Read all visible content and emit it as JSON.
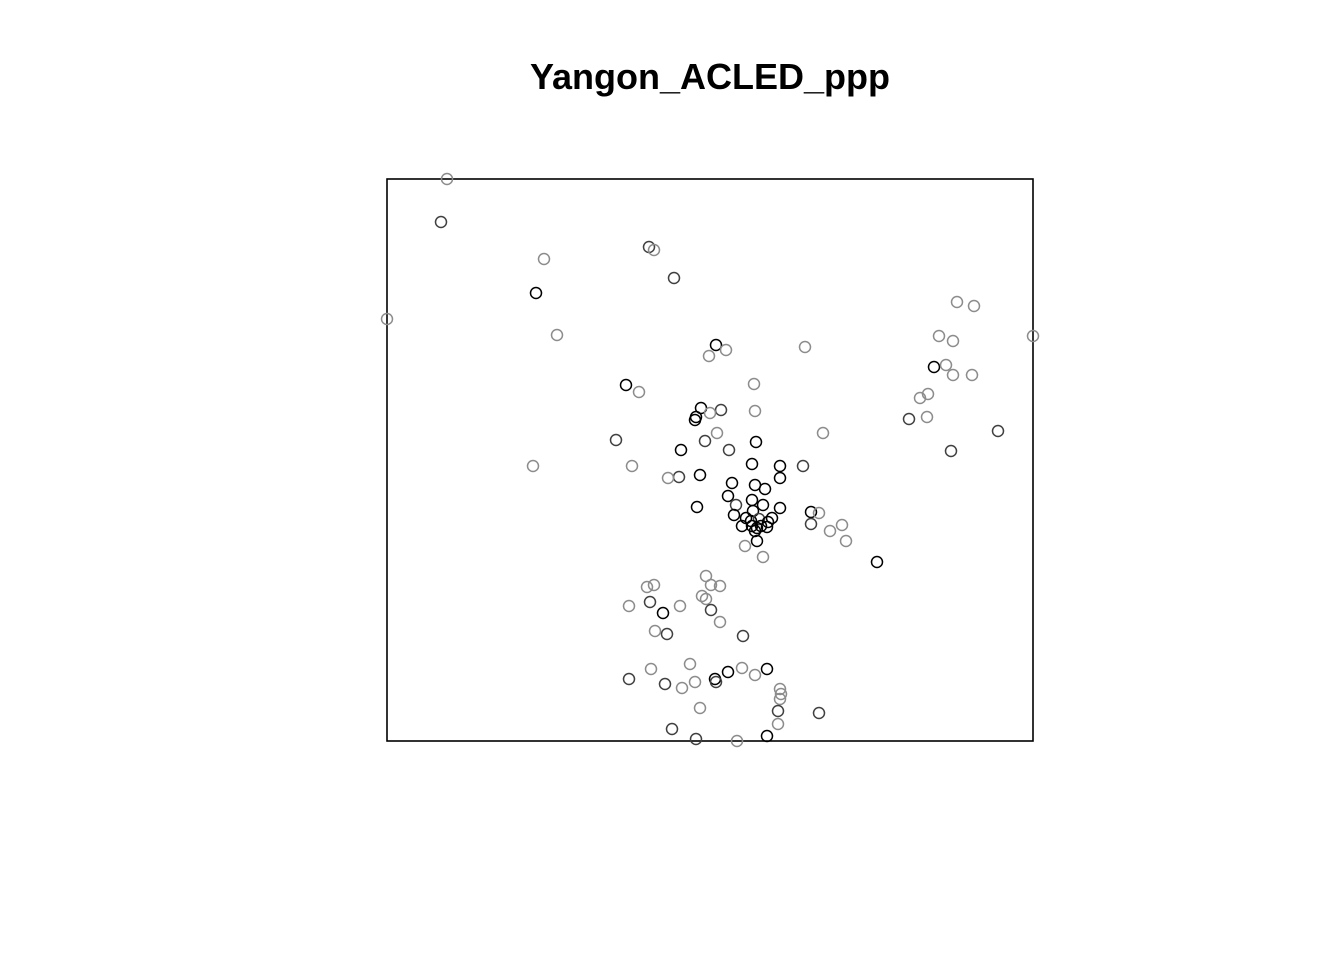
{
  "chart_data": {
    "type": "scatter",
    "title": "Yangon_ACLED_ppp",
    "xlabel": "",
    "ylabel": "",
    "xlim": [
      0,
      646
    ],
    "ylim": [
      0,
      562
    ],
    "axes": false,
    "grid": false,
    "window_frame": true,
    "marker": "open-circle",
    "colors": {
      "dark": "#000000",
      "medium": "#404040",
      "light": "#8c8c8c"
    },
    "points": [
      {
        "x": 60,
        "y": 562,
        "shade": "light"
      },
      {
        "x": 54,
        "y": 519,
        "shade": "medium"
      },
      {
        "x": 157,
        "y": 482,
        "shade": "light"
      },
      {
        "x": 262,
        "y": 494,
        "shade": "medium"
      },
      {
        "x": 267,
        "y": 491,
        "shade": "light"
      },
      {
        "x": 287,
        "y": 463,
        "shade": "medium"
      },
      {
        "x": 149,
        "y": 448,
        "shade": "dark"
      },
      {
        "x": 0,
        "y": 422,
        "shade": "light"
      },
      {
        "x": 170,
        "y": 406,
        "shade": "light"
      },
      {
        "x": 329,
        "y": 396,
        "shade": "dark"
      },
      {
        "x": 322,
        "y": 385,
        "shade": "light"
      },
      {
        "x": 339,
        "y": 391,
        "shade": "light"
      },
      {
        "x": 418,
        "y": 394,
        "shade": "light"
      },
      {
        "x": 239,
        "y": 356,
        "shade": "dark"
      },
      {
        "x": 252,
        "y": 349,
        "shade": "light"
      },
      {
        "x": 367,
        "y": 357,
        "shade": "light"
      },
      {
        "x": 368,
        "y": 330,
        "shade": "light"
      },
      {
        "x": 314,
        "y": 333,
        "shade": "dark"
      },
      {
        "x": 309,
        "y": 324,
        "shade": "dark"
      },
      {
        "x": 308,
        "y": 321,
        "shade": "dark"
      },
      {
        "x": 334,
        "y": 331,
        "shade": "medium"
      },
      {
        "x": 323,
        "y": 328,
        "shade": "light"
      },
      {
        "x": 330,
        "y": 308,
        "shade": "light"
      },
      {
        "x": 318,
        "y": 300,
        "shade": "medium"
      },
      {
        "x": 342,
        "y": 291,
        "shade": "medium"
      },
      {
        "x": 369,
        "y": 299,
        "shade": "dark"
      },
      {
        "x": 294,
        "y": 291,
        "shade": "dark"
      },
      {
        "x": 436,
        "y": 308,
        "shade": "light"
      },
      {
        "x": 229,
        "y": 301,
        "shade": "medium"
      },
      {
        "x": 245,
        "y": 275,
        "shade": "light"
      },
      {
        "x": 146,
        "y": 275,
        "shade": "light"
      },
      {
        "x": 292,
        "y": 264,
        "shade": "medium"
      },
      {
        "x": 281,
        "y": 263,
        "shade": "light"
      },
      {
        "x": 313,
        "y": 266,
        "shade": "dark"
      },
      {
        "x": 365,
        "y": 277,
        "shade": "dark"
      },
      {
        "x": 393,
        "y": 275,
        "shade": "dark"
      },
      {
        "x": 416,
        "y": 275,
        "shade": "medium"
      },
      {
        "x": 345,
        "y": 258,
        "shade": "dark"
      },
      {
        "x": 368,
        "y": 256,
        "shade": "dark"
      },
      {
        "x": 378,
        "y": 252,
        "shade": "dark"
      },
      {
        "x": 393,
        "y": 263,
        "shade": "dark"
      },
      {
        "x": 341,
        "y": 245,
        "shade": "dark"
      },
      {
        "x": 365,
        "y": 241,
        "shade": "dark"
      },
      {
        "x": 376,
        "y": 236,
        "shade": "dark"
      },
      {
        "x": 349,
        "y": 236,
        "shade": "medium"
      },
      {
        "x": 366,
        "y": 230,
        "shade": "dark"
      },
      {
        "x": 393,
        "y": 233,
        "shade": "dark"
      },
      {
        "x": 310,
        "y": 234,
        "shade": "dark"
      },
      {
        "x": 347,
        "y": 226,
        "shade": "dark"
      },
      {
        "x": 359,
        "y": 223,
        "shade": "dark"
      },
      {
        "x": 364,
        "y": 220,
        "shade": "dark"
      },
      {
        "x": 372,
        "y": 222,
        "shade": "medium"
      },
      {
        "x": 381,
        "y": 219,
        "shade": "dark"
      },
      {
        "x": 385,
        "y": 223,
        "shade": "dark"
      },
      {
        "x": 355,
        "y": 215,
        "shade": "dark"
      },
      {
        "x": 365,
        "y": 215,
        "shade": "dark"
      },
      {
        "x": 370,
        "y": 213,
        "shade": "dark"
      },
      {
        "x": 374,
        "y": 215,
        "shade": "dark"
      },
      {
        "x": 380,
        "y": 214,
        "shade": "dark"
      },
      {
        "x": 368,
        "y": 210,
        "shade": "dark"
      },
      {
        "x": 370,
        "y": 200,
        "shade": "dark"
      },
      {
        "x": 358,
        "y": 195,
        "shade": "light"
      },
      {
        "x": 376,
        "y": 184,
        "shade": "light"
      },
      {
        "x": 424,
        "y": 229,
        "shade": "dark"
      },
      {
        "x": 424,
        "y": 217,
        "shade": "medium"
      },
      {
        "x": 432,
        "y": 228,
        "shade": "light"
      },
      {
        "x": 443,
        "y": 210,
        "shade": "light"
      },
      {
        "x": 455,
        "y": 216,
        "shade": "light"
      },
      {
        "x": 459,
        "y": 200,
        "shade": "light"
      },
      {
        "x": 490,
        "y": 179,
        "shade": "dark"
      },
      {
        "x": 570,
        "y": 439,
        "shade": "light"
      },
      {
        "x": 587,
        "y": 435,
        "shade": "light"
      },
      {
        "x": 552,
        "y": 405,
        "shade": "light"
      },
      {
        "x": 566,
        "y": 400,
        "shade": "light"
      },
      {
        "x": 547,
        "y": 374,
        "shade": "dark"
      },
      {
        "x": 559,
        "y": 376,
        "shade": "light"
      },
      {
        "x": 566,
        "y": 366,
        "shade": "light"
      },
      {
        "x": 585,
        "y": 366,
        "shade": "light"
      },
      {
        "x": 646,
        "y": 405,
        "shade": "light"
      },
      {
        "x": 541,
        "y": 347,
        "shade": "light"
      },
      {
        "x": 533,
        "y": 343,
        "shade": "light"
      },
      {
        "x": 540,
        "y": 324,
        "shade": "light"
      },
      {
        "x": 522,
        "y": 322,
        "shade": "medium"
      },
      {
        "x": 611,
        "y": 310,
        "shade": "medium"
      },
      {
        "x": 564,
        "y": 290,
        "shade": "medium"
      },
      {
        "x": 319,
        "y": 165,
        "shade": "light"
      },
      {
        "x": 267,
        "y": 156,
        "shade": "light"
      },
      {
        "x": 260,
        "y": 154,
        "shade": "light"
      },
      {
        "x": 324,
        "y": 156,
        "shade": "light"
      },
      {
        "x": 333,
        "y": 155,
        "shade": "light"
      },
      {
        "x": 315,
        "y": 145,
        "shade": "light"
      },
      {
        "x": 242,
        "y": 135,
        "shade": "light"
      },
      {
        "x": 263,
        "y": 139,
        "shade": "medium"
      },
      {
        "x": 293,
        "y": 135,
        "shade": "light"
      },
      {
        "x": 319,
        "y": 142,
        "shade": "light"
      },
      {
        "x": 324,
        "y": 131,
        "shade": "medium"
      },
      {
        "x": 276,
        "y": 128,
        "shade": "dark"
      },
      {
        "x": 333,
        "y": 119,
        "shade": "light"
      },
      {
        "x": 268,
        "y": 110,
        "shade": "light"
      },
      {
        "x": 280,
        "y": 107,
        "shade": "medium"
      },
      {
        "x": 356,
        "y": 105,
        "shade": "medium"
      },
      {
        "x": 264,
        "y": 72,
        "shade": "light"
      },
      {
        "x": 303,
        "y": 77,
        "shade": "light"
      },
      {
        "x": 242,
        "y": 62,
        "shade": "medium"
      },
      {
        "x": 278,
        "y": 57,
        "shade": "medium"
      },
      {
        "x": 295,
        "y": 53,
        "shade": "light"
      },
      {
        "x": 308,
        "y": 59,
        "shade": "light"
      },
      {
        "x": 328,
        "y": 62,
        "shade": "dark"
      },
      {
        "x": 329,
        "y": 59,
        "shade": "medium"
      },
      {
        "x": 341,
        "y": 69,
        "shade": "dark"
      },
      {
        "x": 355,
        "y": 73,
        "shade": "light"
      },
      {
        "x": 368,
        "y": 66,
        "shade": "light"
      },
      {
        "x": 380,
        "y": 72,
        "shade": "dark"
      },
      {
        "x": 393,
        "y": 52,
        "shade": "light"
      },
      {
        "x": 394,
        "y": 47,
        "shade": "light"
      },
      {
        "x": 393,
        "y": 42,
        "shade": "light"
      },
      {
        "x": 391,
        "y": 30,
        "shade": "medium"
      },
      {
        "x": 432,
        "y": 28,
        "shade": "medium"
      },
      {
        "x": 313,
        "y": 33,
        "shade": "light"
      },
      {
        "x": 391,
        "y": 17,
        "shade": "light"
      },
      {
        "x": 285,
        "y": 12,
        "shade": "medium"
      },
      {
        "x": 309,
        "y": 2,
        "shade": "medium"
      },
      {
        "x": 350,
        "y": 0,
        "shade": "light"
      },
      {
        "x": 380,
        "y": 5,
        "shade": "dark"
      }
    ]
  }
}
